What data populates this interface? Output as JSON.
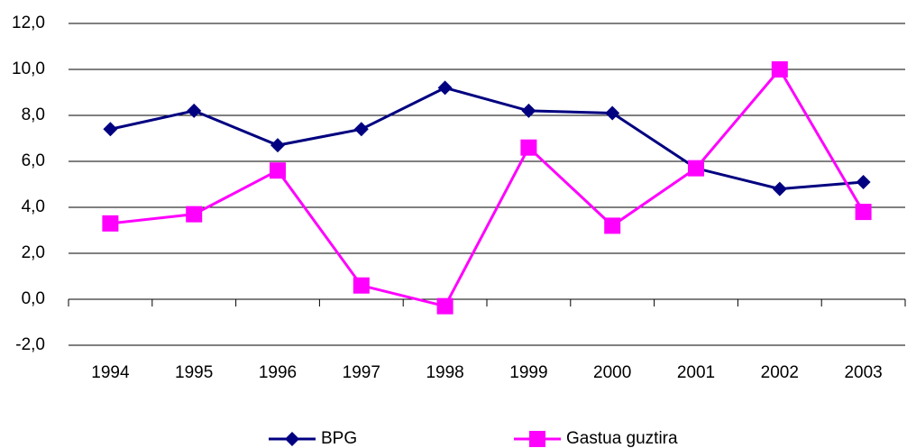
{
  "chart_data": {
    "type": "line",
    "categories": [
      "1994",
      "1995",
      "1996",
      "1997",
      "1998",
      "1999",
      "2000",
      "2001",
      "2002",
      "2003"
    ],
    "series": [
      {
        "name": "BPG",
        "color": "#000080",
        "marker": "diamond",
        "values": [
          7.4,
          8.2,
          6.7,
          7.4,
          9.2,
          8.2,
          8.1,
          5.7,
          4.8,
          5.1
        ]
      },
      {
        "name": "Gastua guztira",
        "color": "#ff00ff",
        "marker": "square",
        "values": [
          3.3,
          3.7,
          5.6,
          0.6,
          -0.3,
          6.6,
          3.2,
          5.7,
          10.0,
          3.8
        ]
      }
    ],
    "ylim": [
      -2,
      12
    ],
    "yticks": [
      {
        "value": -2,
        "label": "-2,0"
      },
      {
        "value": 0,
        "label": "0,0"
      },
      {
        "value": 2,
        "label": "2,0"
      },
      {
        "value": 4,
        "label": "4,0"
      },
      {
        "value": 6,
        "label": "6,0"
      },
      {
        "value": 8,
        "label": "8,0"
      },
      {
        "value": 10,
        "label": "10,0"
      },
      {
        "value": 12,
        "label": "12,0"
      }
    ],
    "grid": true,
    "legend": "bottom"
  }
}
